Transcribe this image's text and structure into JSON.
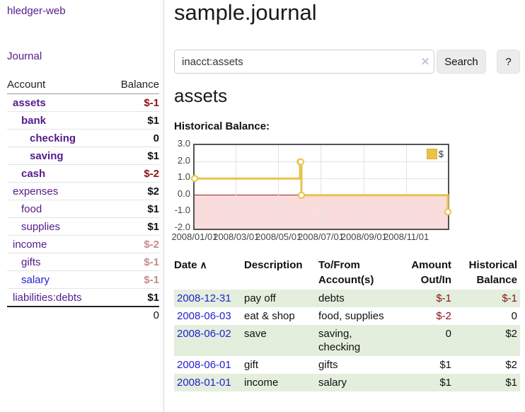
{
  "sidebar": {
    "brand": "hledger-web",
    "nav_journal": "Journal",
    "account_header": "Account",
    "balance_header": "Balance",
    "accounts": [
      {
        "name": "assets",
        "balance": "$-1",
        "level": 1,
        "bold": true,
        "neg": "strong",
        "link": "purple"
      },
      {
        "name": "bank",
        "balance": "$1",
        "level": 2,
        "bold": true,
        "neg": "none",
        "link": "purple"
      },
      {
        "name": "checking",
        "balance": "0",
        "level": 3,
        "bold": true,
        "neg": "none",
        "link": "purple"
      },
      {
        "name": "saving",
        "balance": "$1",
        "level": 3,
        "bold": true,
        "neg": "none",
        "link": "purple"
      },
      {
        "name": "cash",
        "balance": "$-2",
        "level": 2,
        "bold": true,
        "neg": "strong",
        "link": "purple"
      },
      {
        "name": "expenses",
        "balance": "$2",
        "level": 1,
        "bold": false,
        "neg": "none",
        "link": "purple"
      },
      {
        "name": "food",
        "balance": "$1",
        "level": 2,
        "bold": false,
        "neg": "none",
        "link": "purple"
      },
      {
        "name": "supplies",
        "balance": "$1",
        "level": 2,
        "bold": false,
        "neg": "none",
        "link": "purple"
      },
      {
        "name": "income",
        "balance": "$-2",
        "level": 1,
        "bold": false,
        "neg": "soft",
        "link": "purple"
      },
      {
        "name": "gifts",
        "balance": "$-1",
        "level": 2,
        "bold": false,
        "neg": "soft",
        "link": "purple"
      },
      {
        "name": "salary",
        "balance": "$-1",
        "level": 2,
        "bold": false,
        "neg": "soft",
        "link": "blue"
      },
      {
        "name": "liabilities:debts",
        "balance": "$1",
        "level": 1,
        "bold": false,
        "neg": "none",
        "link": "purple"
      }
    ],
    "total": "0"
  },
  "header": {
    "title": "sample.journal"
  },
  "search": {
    "value": "inacct:assets",
    "clear_icon": "✕",
    "search_button": "Search",
    "help_button": "?"
  },
  "account_page": {
    "heading": "assets",
    "chart_title": "Historical Balance:"
  },
  "chart_data": {
    "type": "line",
    "step": true,
    "title": "Historical Balance",
    "legend": [
      {
        "label": "$",
        "color": "#e8c24a"
      }
    ],
    "legend_position": "top-right",
    "grid": true,
    "ylim": [
      -2,
      3
    ],
    "y_ticks": [
      "3.0",
      "2.0",
      "1.0",
      "0.0",
      "-1.0",
      "-2.0"
    ],
    "xlim": [
      "2008/01/01",
      "2008/12/31"
    ],
    "x_ticks": [
      "2008/01/01",
      "2008/03/01",
      "2008/05/01",
      "2008/07/01",
      "2008/09/01",
      "2008/11/01"
    ],
    "points": [
      {
        "x": "2008/01/01",
        "y": 1
      },
      {
        "x": "2008/06/01",
        "y": 2
      },
      {
        "x": "2008/06/02",
        "y": 2
      },
      {
        "x": "2008/06/03",
        "y": 0
      },
      {
        "x": "2008/12/31",
        "y": -1
      }
    ],
    "series_color": "#e8c24a",
    "negative_region_color": "#fbdcdc",
    "zero_line_color": "#991f1f"
  },
  "register": {
    "headers": {
      "date": "Date",
      "sort_icon": "∧",
      "description": "Description",
      "tofrom": "To/From\nAccount(s)",
      "amount": "Amount\nOut/In",
      "balance": "Historical\nBalance"
    },
    "rows": [
      {
        "date": "2008-12-31",
        "description": "pay off",
        "tofrom": "debts",
        "amount": "$-1",
        "balance": "$-1",
        "amount_neg": true,
        "balance_neg": true,
        "shaded": true
      },
      {
        "date": "2008-06-03",
        "description": "eat & shop",
        "tofrom": "food, supplies",
        "amount": "$-2",
        "balance": "0",
        "amount_neg": true,
        "balance_neg": false,
        "shaded": false
      },
      {
        "date": "2008-06-02",
        "description": "save",
        "tofrom": "saving,\nchecking",
        "amount": "0",
        "balance": "$2",
        "amount_neg": false,
        "balance_neg": false,
        "shaded": true
      },
      {
        "date": "2008-06-01",
        "description": "gift",
        "tofrom": "gifts",
        "amount": "$1",
        "balance": "$2",
        "amount_neg": false,
        "balance_neg": false,
        "shaded": false
      },
      {
        "date": "2008-01-01",
        "description": "income",
        "tofrom": "salary",
        "amount": "$1",
        "balance": "$1",
        "amount_neg": false,
        "balance_neg": false,
        "shaded": true
      }
    ]
  },
  "colors": {
    "link_purple": "#551a8b",
    "link_blue": "#2222cc",
    "negative_strong": "#8b1313",
    "negative_soft": "#c58b8b",
    "row_green": "#e3eedd",
    "chart_gold": "#e8c24a",
    "chart_negative_fill": "#fbdcdc",
    "chart_zero_line": "#991f1f"
  }
}
